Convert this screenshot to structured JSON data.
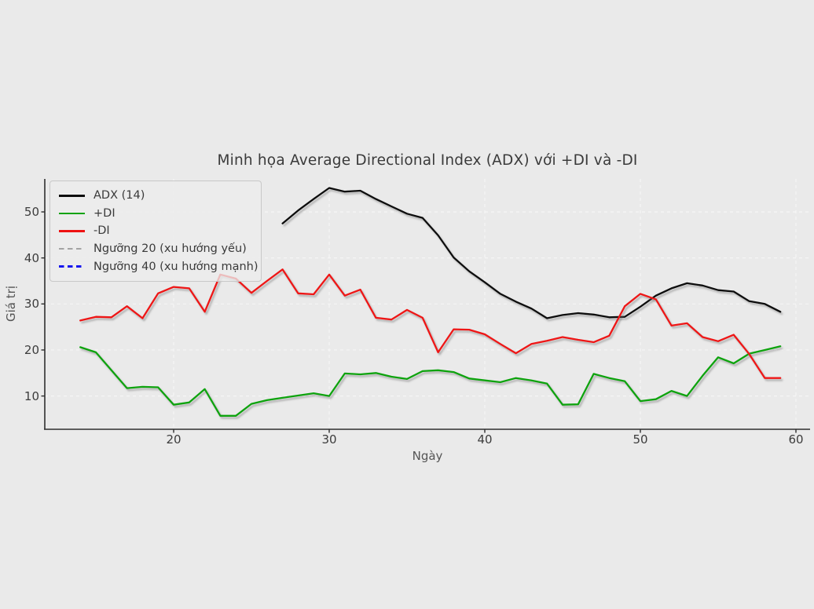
{
  "chart_data": {
    "type": "line",
    "title": "Minh họa Average Directional Index (ADX) với +DI và -DI",
    "xlabel": "Ngày",
    "ylabel": "Giá trị",
    "xlim": [
      11.7,
      60.9
    ],
    "ylim": [
      2.7,
      57.2
    ],
    "xticks": [
      20,
      30,
      40,
      50,
      60
    ],
    "yticks": [
      10,
      20,
      30,
      40,
      50
    ],
    "grid": "white dashed gridlines on light gray background",
    "legend_position": "upper left",
    "colors": {
      "background": "#eaeaea",
      "gridline": "#f6f6f6",
      "spine": "#2e2e2e",
      "text": "#3c3c3c"
    },
    "series": [
      {
        "name": "ADX (14)",
        "color": "#0d0d0d",
        "style": "solid",
        "x_start": 27,
        "x_step": 1,
        "values": [
          47.5,
          50.3,
          52.8,
          55.2,
          54.4,
          54.6,
          52.8,
          51.2,
          49.6,
          48.7,
          44.9,
          40.1,
          37.1,
          34.7,
          32.2,
          30.5,
          29.0,
          26.9,
          27.6,
          28.0,
          27.7,
          27.1,
          27.2,
          29.4,
          31.8,
          33.4,
          34.5,
          34.0,
          33.0,
          32.7,
          30.6,
          30.0,
          28.3
        ]
      },
      {
        "name": "+DI",
        "color": "#0fa30f",
        "style": "solid",
        "x_start": 14,
        "x_step": 1,
        "values": [
          20.6,
          19.5,
          15.6,
          11.7,
          12.0,
          11.9,
          8.1,
          8.6,
          11.5,
          5.7,
          5.7,
          8.3,
          9.1,
          9.6,
          10.1,
          10.6,
          10.0,
          14.9,
          14.7,
          15.0,
          14.2,
          13.7,
          15.4,
          15.6,
          15.2,
          13.8,
          13.4,
          13.0,
          13.9,
          13.4,
          12.7,
          8.1,
          8.2,
          14.8,
          13.9,
          13.2,
          8.9,
          9.3,
          11.1,
          10.0,
          14.4,
          18.4,
          17.1,
          19.2,
          20.0,
          20.8
        ]
      },
      {
        "name": "-DI",
        "color": "#ee1212",
        "style": "solid",
        "x_start": 14,
        "x_step": 1,
        "values": [
          26.4,
          27.2,
          27.1,
          29.5,
          26.9,
          32.3,
          33.7,
          33.4,
          28.3,
          36.4,
          35.5,
          32.4,
          35.0,
          37.5,
          32.3,
          32.1,
          36.4,
          31.8,
          33.1,
          27.0,
          26.6,
          28.7,
          27.0,
          19.5,
          24.5,
          24.4,
          23.4,
          21.3,
          19.3,
          21.3,
          22.0,
          22.8,
          22.2,
          21.7,
          23.1,
          29.5,
          32.2,
          31.0,
          25.3,
          25.8,
          22.8,
          21.9,
          23.3,
          19.1,
          13.9,
          13.9
        ]
      }
    ],
    "thresholds": [
      {
        "name": "Ngưỡng 20 (xu hướng yếu)",
        "value": 20,
        "color": "#a3a3a3",
        "style": "dashed"
      },
      {
        "name": "Ngưỡng 40 (xu hướng mạnh)",
        "value": 40,
        "color": "#1717ee",
        "style": "dashed"
      }
    ]
  }
}
